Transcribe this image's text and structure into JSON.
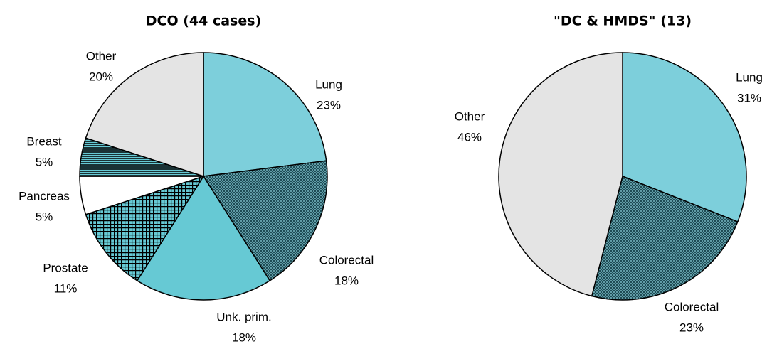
{
  "chart_data": [
    {
      "type": "pie",
      "title": "DCO (44 cases)",
      "categories": [
        "Lung",
        "Colorectal",
        "Unk. prim.",
        "Prostate",
        "Pancreas",
        "Breast",
        "Other"
      ],
      "values": [
        23,
        18,
        18,
        11,
        5,
        5,
        20
      ],
      "value_labels": [
        "23%",
        "18%",
        "18%",
        "11%",
        "5%",
        "5%",
        "20%"
      ],
      "colors": [
        "#7dcfdb",
        "#1f4c55",
        "#66c9d4",
        "#66c9d4",
        "#ffffff",
        "#66c9d4",
        "#e4e4e4"
      ],
      "patterns": [
        "solid",
        "dots",
        "solid",
        "grid",
        "solid",
        "stripes",
        "solid"
      ]
    },
    {
      "type": "pie",
      "title": "\"DC & HMDS\" (13)",
      "categories": [
        "Lung",
        "Colorectal",
        "Other"
      ],
      "values": [
        31,
        23,
        46
      ],
      "value_labels": [
        "31%",
        "23%",
        "46%"
      ],
      "colors": [
        "#7dcfdb",
        "#1f4c55",
        "#e4e4e4"
      ],
      "patterns": [
        "solid",
        "dots",
        "solid"
      ]
    }
  ]
}
